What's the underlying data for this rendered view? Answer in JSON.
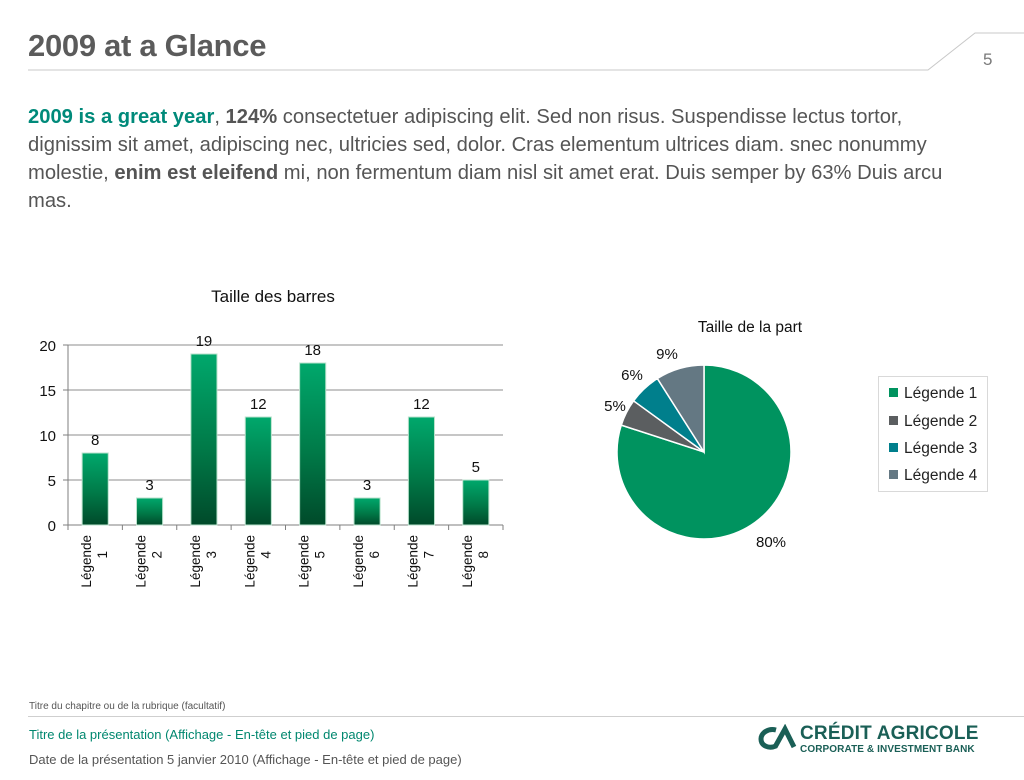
{
  "slide": {
    "title": "2009 at a Glance",
    "page_number": "5"
  },
  "intro": {
    "accent_text": "2009 is a great year",
    "after_accent": ", ",
    "bold_value": "124%",
    "text_1": " consectetuer adipiscing elit. Sed non risus. Suspendisse lectus tortor, dignissim sit amet, adipiscing nec, ultricies sed, dolor. Cras elementum ultrices diam. snec nonummy molestie, ",
    "bold_phrase": "enim est eleifend",
    "text_2": " mi, non fermentum diam nisl sit amet erat. Duis semper by 63% Duis arcu mas."
  },
  "chart_data": [
    {
      "type": "bar",
      "title": "Taille des barres",
      "categories": [
        "Légende 1",
        "Légende 2",
        "Légende 3",
        "Légende 4",
        "Légende 5",
        "Légende 6",
        "Légende 7",
        "Légende 8"
      ],
      "values": [
        8,
        3,
        19,
        12,
        18,
        3,
        12,
        5
      ],
      "data_labels": [
        "8",
        "3",
        "19",
        "12",
        "18",
        "3",
        "12",
        "5"
      ],
      "ylim": [
        0,
        20
      ],
      "yticks": [
        0,
        5,
        10,
        15,
        20
      ],
      "grid": true,
      "color": "#00935f"
    },
    {
      "type": "pie",
      "title": "Taille de la part",
      "labels": [
        "Légende 1",
        "Légende 2",
        "Légende 3",
        "Légende 4"
      ],
      "values": [
        80,
        5,
        6,
        9
      ],
      "data_labels": [
        "80%",
        "5%",
        "6%",
        "9%"
      ],
      "colors": [
        "#00935f",
        "#5b5e60",
        "#007f8c",
        "#647883"
      ],
      "legend_position": "right"
    }
  ],
  "footer": {
    "chapter": "Titre du chapitre ou de la rubrique (facultatif)",
    "presentation_title": "Titre de la présentation (Affichage - En-tête et pied de page)",
    "presentation_date": "Date de la présentation 5 janvier 2010 (Affichage - En-tête et pied de page)"
  },
  "logo": {
    "name": "CRÉDIT AGRICOLE",
    "subtitle": "CORPORATE & INVESTMENT BANK"
  }
}
